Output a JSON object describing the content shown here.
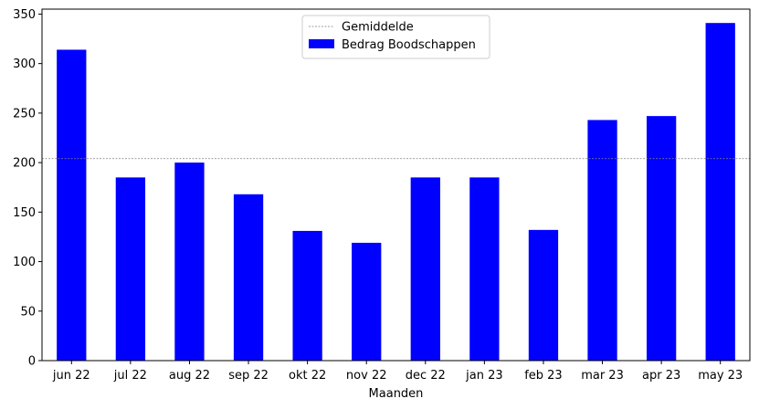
{
  "chart_data": {
    "type": "bar",
    "title": "",
    "xlabel": "Maanden",
    "ylabel": "",
    "categories": [
      "jun 22",
      "jul 22",
      "aug 22",
      "sep 22",
      "okt 22",
      "nov 22",
      "dec 22",
      "jan 23",
      "feb 23",
      "mar 23",
      "apr 23",
      "may 23"
    ],
    "series": [
      {
        "name": "Bedrag Boodschappen",
        "color": "#0000ff",
        "values": [
          314,
          185,
          200,
          168,
          131,
          119,
          185,
          185,
          132,
          243,
          247,
          341
        ]
      }
    ],
    "reference_line": {
      "name": "Gemiddelde",
      "value": 204,
      "color": "#808080",
      "style": "dotted"
    },
    "ylim": [
      0,
      355
    ],
    "yticks": [
      0,
      50,
      100,
      150,
      200,
      250,
      300,
      350
    ],
    "grid": false,
    "legend_position": "top-center"
  }
}
